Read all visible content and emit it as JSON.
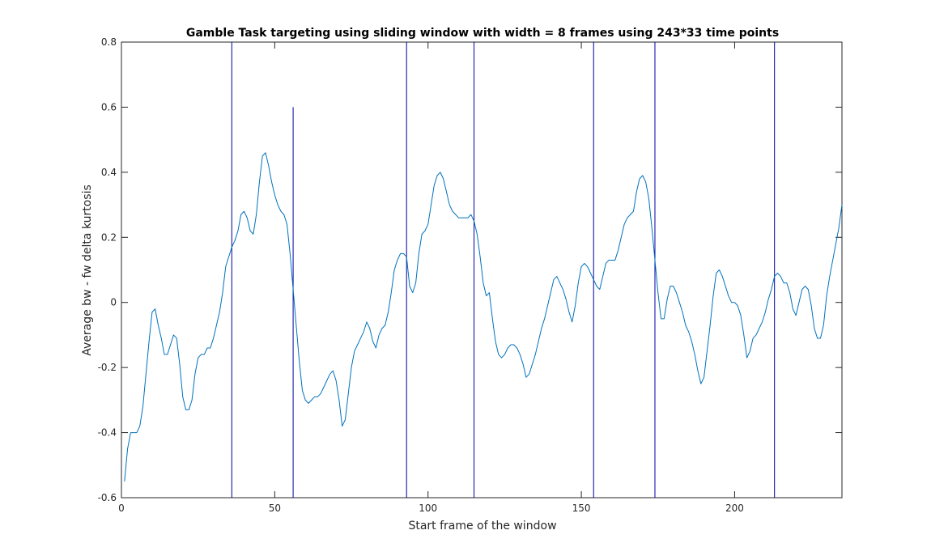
{
  "chart_data": {
    "type": "line",
    "title": "Gamble Task targeting using sliding window with width = 8 frames using 243*33 time points",
    "xlabel": "Start frame of the window",
    "ylabel": "Average bw - fw delta kurtosis",
    "xlim": [
      0,
      235
    ],
    "ylim": [
      -0.6,
      0.8
    ],
    "xticks": [
      0,
      50,
      100,
      150,
      200
    ],
    "yticks": [
      -0.6,
      -0.4,
      -0.2,
      0,
      0.2,
      0.4,
      0.6,
      0.8
    ],
    "grid": false,
    "legend": false,
    "line_color": "#0072BD",
    "marker_color": "#0000A8",
    "markers": [
      {
        "x": 36,
        "y_top": 0.8
      },
      {
        "x": 56,
        "y_top": 0.6
      },
      {
        "x": 93,
        "y_top": 0.8
      },
      {
        "x": 115,
        "y_top": 0.8
      },
      {
        "x": 154,
        "y_top": 0.8
      },
      {
        "x": 174,
        "y_top": 0.8
      },
      {
        "x": 213,
        "y_top": 0.8
      }
    ],
    "series": [
      {
        "x": [
          1,
          2,
          3,
          4,
          5,
          6,
          7,
          8,
          9,
          10,
          11,
          12,
          13,
          14,
          15,
          16,
          17,
          18,
          19,
          20,
          21,
          22,
          23,
          24,
          25,
          26,
          27,
          28,
          29,
          30,
          31,
          32,
          33,
          34,
          35,
          36,
          37,
          38,
          39,
          40,
          41,
          42,
          43,
          44,
          45,
          46,
          47,
          48,
          49,
          50,
          51,
          52,
          53,
          54,
          55,
          56,
          57,
          58,
          59,
          60,
          61,
          62,
          63,
          64,
          65,
          66,
          67,
          68,
          69,
          70,
          71,
          72,
          73,
          74,
          75,
          76,
          77,
          78,
          79,
          80,
          81,
          82,
          83,
          84,
          85,
          86,
          87,
          88,
          89,
          90,
          91,
          92,
          93,
          94,
          95,
          96,
          97,
          98,
          99,
          100,
          101,
          102,
          103,
          104,
          105,
          106,
          107,
          108,
          109,
          110,
          111,
          112,
          113,
          114,
          115,
          116,
          117,
          118,
          119,
          120,
          121,
          122,
          123,
          124,
          125,
          126,
          127,
          128,
          129,
          130,
          131,
          132,
          133,
          134,
          135,
          136,
          137,
          138,
          139,
          140,
          141,
          142,
          143,
          144,
          145,
          146,
          147,
          148,
          149,
          150,
          151,
          152,
          153,
          154,
          155,
          156,
          157,
          158,
          159,
          160,
          161,
          162,
          163,
          164,
          165,
          166,
          167,
          168,
          169,
          170,
          171,
          172,
          173,
          174,
          175,
          176,
          177,
          178,
          179,
          180,
          181,
          182,
          183,
          184,
          185,
          186,
          187,
          188,
          189,
          190,
          191,
          192,
          193,
          194,
          195,
          196,
          197,
          198,
          199,
          200,
          201,
          202,
          203,
          204,
          205,
          206,
          207,
          208,
          209,
          210,
          211,
          212,
          213,
          214,
          215,
          216,
          217,
          218,
          219,
          220,
          221,
          222,
          223,
          224,
          225,
          226,
          227,
          228,
          229,
          230,
          231,
          232,
          233,
          234,
          235
        ],
        "y": [
          -0.55,
          -0.45,
          -0.4,
          -0.4,
          -0.4,
          -0.38,
          -0.32,
          -0.22,
          -0.12,
          -0.03,
          -0.02,
          -0.07,
          -0.11,
          -0.16,
          -0.16,
          -0.13,
          -0.1,
          -0.11,
          -0.19,
          -0.29,
          -0.33,
          -0.33,
          -0.3,
          -0.22,
          -0.17,
          -0.16,
          -0.16,
          -0.14,
          -0.14,
          -0.11,
          -0.07,
          -0.03,
          0.03,
          0.11,
          0.14,
          0.17,
          0.19,
          0.22,
          0.27,
          0.28,
          0.26,
          0.22,
          0.21,
          0.27,
          0.37,
          0.45,
          0.46,
          0.42,
          0.37,
          0.33,
          0.3,
          0.28,
          0.27,
          0.24,
          0.15,
          0.04,
          -0.07,
          -0.18,
          -0.27,
          -0.3,
          -0.31,
          -0.3,
          -0.29,
          -0.29,
          -0.28,
          -0.26,
          -0.24,
          -0.22,
          -0.21,
          -0.24,
          -0.3,
          -0.38,
          -0.36,
          -0.28,
          -0.2,
          -0.15,
          -0.13,
          -0.11,
          -0.09,
          -0.06,
          -0.08,
          -0.12,
          -0.14,
          -0.1,
          -0.08,
          -0.07,
          -0.03,
          0.03,
          0.1,
          0.13,
          0.15,
          0.15,
          0.14,
          0.05,
          0.03,
          0.06,
          0.15,
          0.21,
          0.22,
          0.24,
          0.3,
          0.36,
          0.39,
          0.4,
          0.38,
          0.34,
          0.3,
          0.28,
          0.27,
          0.26,
          0.26,
          0.26,
          0.26,
          0.27,
          0.25,
          0.21,
          0.14,
          0.06,
          0.02,
          0.03,
          -0.05,
          -0.12,
          -0.16,
          -0.17,
          -0.16,
          -0.14,
          -0.13,
          -0.13,
          -0.14,
          -0.16,
          -0.19,
          -0.23,
          -0.22,
          -0.19,
          -0.16,
          -0.12,
          -0.08,
          -0.05,
          -0.01,
          0.03,
          0.07,
          0.08,
          0.06,
          0.04,
          0.01,
          -0.03,
          -0.06,
          -0.01,
          0.06,
          0.11,
          0.12,
          0.11,
          0.09,
          0.07,
          0.05,
          0.04,
          0.08,
          0.12,
          0.13,
          0.13,
          0.13,
          0.16,
          0.2,
          0.24,
          0.26,
          0.27,
          0.28,
          0.34,
          0.38,
          0.39,
          0.37,
          0.32,
          0.23,
          0.13,
          0.03,
          -0.05,
          -0.05,
          0.01,
          0.05,
          0.05,
          0.03,
          0.0,
          -0.03,
          -0.07,
          -0.09,
          -0.12,
          -0.16,
          -0.21,
          -0.25,
          -0.23,
          -0.15,
          -0.07,
          0.02,
          0.09,
          0.1,
          0.08,
          0.05,
          0.02,
          0.0,
          0.0,
          -0.01,
          -0.04,
          -0.1,
          -0.17,
          -0.15,
          -0.11,
          -0.1,
          -0.08,
          -0.06,
          -0.03,
          0.01,
          0.04,
          0.08,
          0.09,
          0.08,
          0.06,
          0.06,
          0.03,
          -0.02,
          -0.04,
          0.0,
          0.04,
          0.05,
          0.04,
          -0.01,
          -0.08,
          -0.11,
          -0.11,
          -0.07,
          0.02,
          0.08,
          0.13,
          0.18,
          0.23,
          0.3
        ]
      }
    ]
  }
}
